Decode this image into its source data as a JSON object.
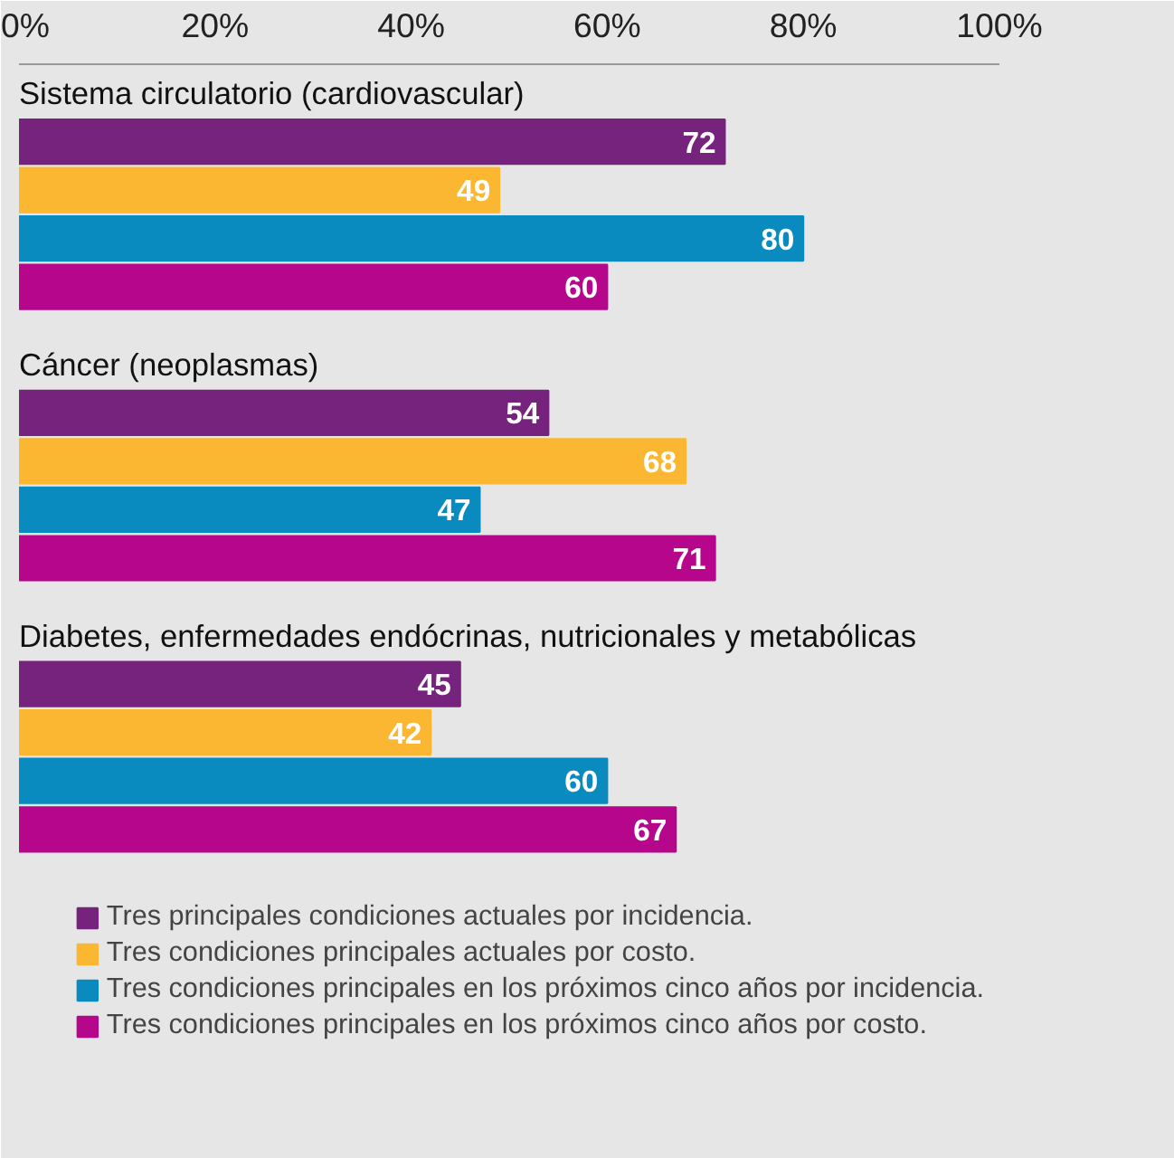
{
  "chart_data": {
    "type": "bar",
    "orientation": "horizontal",
    "categories": [
      "Sistema circulatorio (cardiovascular)",
      "Cáncer (neoplasmas)",
      "Diabetes, enfermedades endócrinas, nutricionales y metabólicas"
    ],
    "series": [
      {
        "name": "Tres principales condiciones actuales por incidencia.",
        "color": "#76237d",
        "values": [
          72,
          54,
          45
        ]
      },
      {
        "name": "Tres condiciones principales actuales por costo.",
        "color": "#fbb731",
        "values": [
          49,
          68,
          42
        ]
      },
      {
        "name": "Tres condiciones principales en los próximos cinco años por incidencia.",
        "color": "#0a8bbf",
        "values": [
          80,
          47,
          60
        ]
      },
      {
        "name": "Tres condiciones principales en los próximos cinco años por costo.",
        "color": "#b5068c",
        "values": [
          60,
          71,
          67
        ]
      }
    ],
    "xlim": [
      0,
      100
    ],
    "xticks": [
      {
        "value": 0,
        "label": "0%"
      },
      {
        "value": 20,
        "label": "20%"
      },
      {
        "value": 40,
        "label": "40%"
      },
      {
        "value": 60,
        "label": "60%"
      },
      {
        "value": 80,
        "label": "80%"
      },
      {
        "value": 100,
        "label": "100%"
      }
    ],
    "data_labels": true,
    "legend": "bottom",
    "tick_labels": "x"
  }
}
